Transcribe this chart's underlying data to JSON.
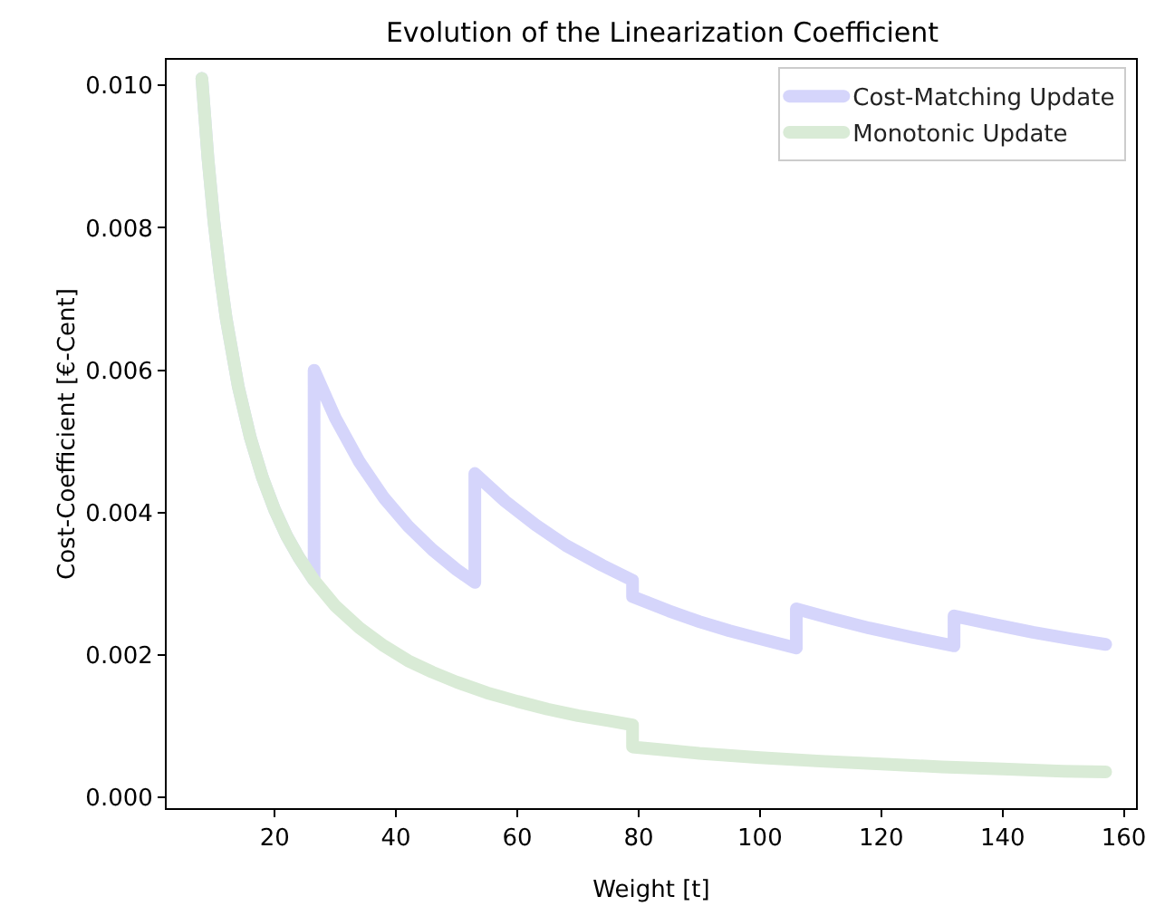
{
  "chart_data": {
    "type": "line",
    "title": "Evolution of the Linearization Coefficient",
    "xlabel": "Weight [t]",
    "ylabel": "Cost-Coefficient [€-Cent]",
    "xlim": [
      2.2,
      162
    ],
    "xticks": [
      20,
      40,
      60,
      80,
      100,
      120,
      140,
      160
    ],
    "ylim": [
      -0.00015,
      0.01036
    ],
    "yticks": [
      {
        "value": 0,
        "label": "0.000"
      },
      {
        "value": 0.002,
        "label": "0.002"
      },
      {
        "value": 0.004,
        "label": "0.004"
      },
      {
        "value": 0.006,
        "label": "0.006"
      },
      {
        "value": 0.008,
        "label": "0.008"
      },
      {
        "value": 0.01,
        "label": "0.010"
      }
    ],
    "grid": false,
    "legend": "top right",
    "line_style": "solid",
    "series": [
      {
        "name": "Cost-Matching Update",
        "color": "#d5d5fb",
        "x": [
          8,
          9,
          10,
          11,
          12,
          14,
          16,
          18,
          20,
          22,
          24,
          26.5,
          26.5,
          30,
          34,
          38,
          42,
          46,
          50,
          53,
          53,
          58,
          63,
          68,
          74,
          79,
          79,
          85,
          90,
          95,
          100,
          106,
          106,
          112,
          118,
          125,
          132,
          132,
          138,
          145,
          151,
          157
        ],
        "values": [
          0.0101,
          0.00898,
          0.00808,
          0.00735,
          0.00673,
          0.00577,
          0.00505,
          0.00449,
          0.00404,
          0.00367,
          0.00337,
          0.00305,
          0.006,
          0.00533,
          0.00471,
          0.00421,
          0.00381,
          0.00348,
          0.0032,
          0.00302,
          0.00455,
          0.00416,
          0.00383,
          0.00354,
          0.00326,
          0.00305,
          0.00282,
          0.00262,
          0.00247,
          0.00234,
          0.00223,
          0.0021,
          0.00265,
          0.00251,
          0.00238,
          0.00225,
          0.00213,
          0.00255,
          0.00244,
          0.00232,
          0.00223,
          0.00215
        ]
      },
      {
        "name": "Monotonic Update",
        "color": "#d9ebd6",
        "x": [
          8,
          9,
          10,
          11,
          12,
          14,
          16,
          18,
          20,
          22,
          24,
          26.5,
          30,
          34,
          38,
          42,
          46,
          50,
          55,
          60,
          65,
          70,
          75,
          79,
          79,
          85,
          90,
          100,
          110,
          120,
          130,
          140,
          150,
          157
        ],
        "values": [
          0.0101,
          0.00898,
          0.00808,
          0.00735,
          0.00673,
          0.00577,
          0.00505,
          0.00449,
          0.00404,
          0.00367,
          0.00337,
          0.00305,
          0.00269,
          0.00238,
          0.00213,
          0.00192,
          0.00176,
          0.00162,
          0.00147,
          0.00135,
          0.00124,
          0.00115,
          0.00108,
          0.00102,
          0.00071,
          0.00066,
          0.00062,
          0.00056,
          0.00051,
          0.00047,
          0.00043,
          0.0004,
          0.00037,
          0.00036
        ]
      }
    ]
  }
}
